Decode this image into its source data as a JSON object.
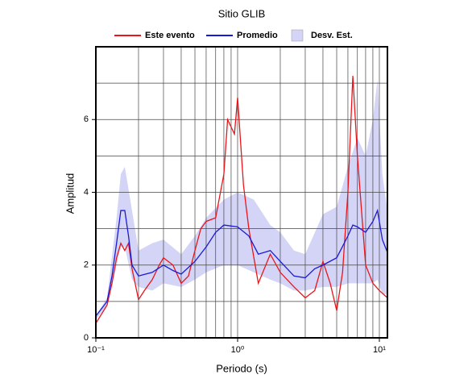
{
  "chart_data": {
    "type": "line",
    "title": "Sitio GLIB",
    "xlabel": "Periodo (s)",
    "ylabel": "Amplitud",
    "xscale": "log",
    "xlim": [
      0.1,
      11.4
    ],
    "ylim": [
      0,
      8
    ],
    "xticks": [
      {
        "value": 0.1,
        "label": "10⁻¹"
      },
      {
        "value": 1,
        "label": "10⁰"
      },
      {
        "value": 10,
        "label": "10¹"
      }
    ],
    "xminorticks": [
      0.2,
      0.3,
      0.4,
      0.5,
      0.6,
      0.7,
      0.8,
      0.9,
      2,
      3,
      4,
      5,
      6,
      7,
      8,
      9
    ],
    "yticks": [
      0,
      2,
      4,
      6
    ],
    "yminorticks": [
      1,
      3,
      5,
      7
    ],
    "grid": true,
    "legend": "top",
    "series": [
      {
        "name": "Este evento",
        "color": "#e8161b",
        "x": [
          0.1,
          0.12,
          0.13,
          0.14,
          0.15,
          0.16,
          0.17,
          0.18,
          0.2,
          0.22,
          0.25,
          0.28,
          0.3,
          0.35,
          0.4,
          0.45,
          0.5,
          0.55,
          0.6,
          0.7,
          0.8,
          0.85,
          0.95,
          1.0,
          1.1,
          1.2,
          1.4,
          1.7,
          2.0,
          2.5,
          3.0,
          3.5,
          4.0,
          4.5,
          5.0,
          5.5,
          6.0,
          6.5,
          7.0,
          8.0,
          9.0,
          10.0,
          11.4
        ],
        "values": [
          0.4,
          0.9,
          1.5,
          2.2,
          2.6,
          2.4,
          2.6,
          1.9,
          1.05,
          1.3,
          1.6,
          2.0,
          2.2,
          2.0,
          1.5,
          1.7,
          2.4,
          3.0,
          3.2,
          3.3,
          4.5,
          6.0,
          5.6,
          6.6,
          4.2,
          3.0,
          1.5,
          2.3,
          1.8,
          1.4,
          1.1,
          1.3,
          2.1,
          1.5,
          0.75,
          1.8,
          4.0,
          7.2,
          5.0,
          2.0,
          1.5,
          1.3,
          1.1
        ]
      },
      {
        "name": "Promedio",
        "color": "#1a1ad6",
        "x": [
          0.1,
          0.12,
          0.13,
          0.14,
          0.15,
          0.16,
          0.17,
          0.18,
          0.2,
          0.25,
          0.3,
          0.35,
          0.4,
          0.5,
          0.6,
          0.7,
          0.8,
          1.0,
          1.2,
          1.4,
          1.7,
          2.0,
          2.5,
          3.0,
          3.5,
          4.0,
          5.0,
          6.0,
          6.5,
          7.0,
          8.0,
          9.0,
          9.7,
          10.5,
          11.4
        ],
        "values": [
          0.6,
          1.0,
          1.7,
          2.6,
          3.5,
          3.5,
          2.8,
          2.0,
          1.7,
          1.8,
          2.0,
          1.85,
          1.75,
          2.1,
          2.5,
          2.9,
          3.1,
          3.05,
          2.8,
          2.3,
          2.4,
          2.1,
          1.7,
          1.65,
          1.9,
          2.0,
          2.2,
          2.8,
          3.1,
          3.05,
          2.9,
          3.2,
          3.5,
          2.7,
          2.35
        ]
      },
      {
        "name": "Desv. Est.",
        "color": "#d4d4f7",
        "x": [
          0.1,
          0.12,
          0.14,
          0.15,
          0.16,
          0.18,
          0.2,
          0.25,
          0.3,
          0.4,
          0.5,
          0.6,
          0.8,
          1.0,
          1.3,
          1.7,
          2.0,
          2.5,
          3.0,
          4.0,
          5.0,
          6.0,
          7.0,
          8.0,
          9.0,
          9.7,
          10.5,
          11.4
        ],
        "lower": [
          0.5,
          0.9,
          2.0,
          2.5,
          2.5,
          1.6,
          1.4,
          1.3,
          1.5,
          1.4,
          1.6,
          1.8,
          2.0,
          2.0,
          1.8,
          1.6,
          1.5,
          1.3,
          1.3,
          1.4,
          1.4,
          1.5,
          1.5,
          1.5,
          1.5,
          1.6,
          1.2,
          1.2
        ],
        "upper": [
          0.6,
          1.1,
          3.3,
          4.5,
          4.7,
          3.5,
          2.4,
          2.6,
          2.7,
          2.3,
          2.8,
          3.3,
          3.8,
          4.0,
          3.8,
          3.1,
          2.9,
          2.4,
          2.3,
          3.4,
          3.6,
          4.7,
          5.5,
          5.0,
          6.0,
          7.1,
          4.5,
          3.5
        ]
      }
    ]
  }
}
